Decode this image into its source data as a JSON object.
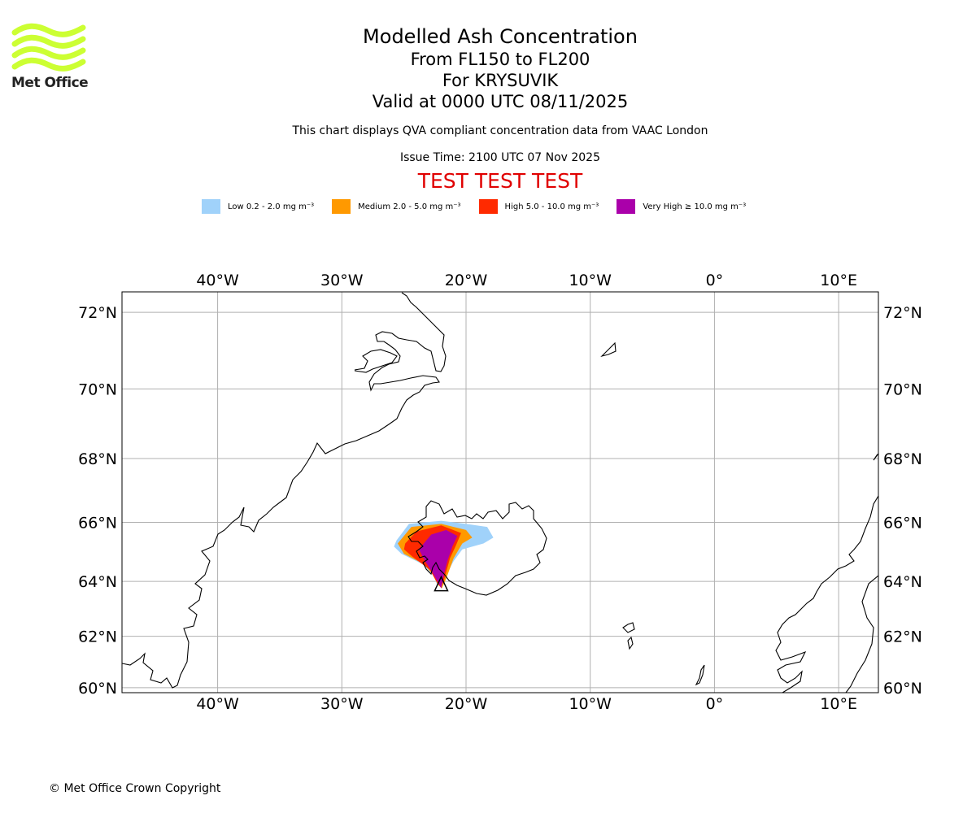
{
  "logo": {
    "text": "Met Office",
    "color": "#ccff33"
  },
  "title": {
    "main": "Modelled Ash Concentration",
    "level": "From FL150 to FL200",
    "location": "For KRYSUVIK",
    "valid": "Valid at 0000 UTC 08/11/2025"
  },
  "subtitle": "This chart displays QVA compliant concentration data from VAAC London",
  "issue_time": "Issue Time: 2100 UTC 07 Nov 2025",
  "test_banner": "TEST TEST TEST",
  "legend": [
    {
      "label": "Low 0.2 - 2.0 mg m⁻³",
      "color": "#a0d2fa"
    },
    {
      "label": "Medium 2.0 - 5.0 mg m⁻³",
      "color": "#ff9900"
    },
    {
      "label": "High 5.0 - 10.0 mg m⁻³",
      "color": "#ff2a00"
    },
    {
      "label": "Very High  ≥  10.0 mg m⁻³",
      "color": "#aa00aa"
    }
  ],
  "map": {
    "lon_range": [
      -47.7,
      13.2
    ],
    "lat_range": [
      59.8,
      72.5
    ],
    "lon_ticks": [
      {
        "value": -40,
        "label": "40°W"
      },
      {
        "value": -30,
        "label": "30°W"
      },
      {
        "value": -20,
        "label": "20°W"
      },
      {
        "value": -10,
        "label": "10°W"
      },
      {
        "value": 0,
        "label": "0°"
      },
      {
        "value": 10,
        "label": "10°E"
      }
    ],
    "lat_ticks": [
      {
        "value": 60,
        "label": "60°N"
      },
      {
        "value": 62,
        "label": "62°N"
      },
      {
        "value": 64,
        "label": "64°N"
      },
      {
        "value": 66,
        "label": "66°N"
      },
      {
        "value": 68,
        "label": "68°N"
      },
      {
        "value": 70,
        "label": "70°N"
      },
      {
        "value": 72,
        "label": "72°N"
      }
    ],
    "grid_color": "#b0b0b0",
    "volcano": {
      "name": "KRYSUVIK",
      "lon": -22.0,
      "lat": 63.9
    },
    "ash": {
      "low": [
        [
          -25.6,
          65.4
        ],
        [
          -24.6,
          65.95
        ],
        [
          -22.0,
          66.05
        ],
        [
          -20.0,
          65.95
        ],
        [
          -18.3,
          65.85
        ],
        [
          -17.8,
          65.5
        ],
        [
          -18.6,
          65.3
        ],
        [
          -20.3,
          65.1
        ],
        [
          -21.0,
          64.7
        ],
        [
          -21.5,
          64.3
        ],
        [
          -21.9,
          63.9
        ],
        [
          -22.3,
          63.85
        ],
        [
          -22.6,
          64.2
        ],
        [
          -23.5,
          64.6
        ],
        [
          -25.2,
          64.95
        ],
        [
          -25.8,
          65.2
        ]
      ],
      "medium": [
        [
          -25.5,
          65.3
        ],
        [
          -24.4,
          65.85
        ],
        [
          -22.0,
          65.95
        ],
        [
          -20.0,
          65.75
        ],
        [
          -19.5,
          65.5
        ],
        [
          -20.3,
          65.3
        ],
        [
          -21.0,
          64.8
        ],
        [
          -21.6,
          64.1
        ],
        [
          -21.95,
          63.75
        ],
        [
          -22.3,
          63.9
        ],
        [
          -22.6,
          64.2
        ],
        [
          -23.4,
          64.6
        ],
        [
          -25.0,
          64.95
        ]
      ],
      "high": [
        [
          -24.9,
          65.3
        ],
        [
          -24.0,
          65.7
        ],
        [
          -22.0,
          65.9
        ],
        [
          -20.4,
          65.65
        ],
        [
          -20.8,
          65.25
        ],
        [
          -21.3,
          64.8
        ],
        [
          -21.8,
          64.0
        ],
        [
          -22.05,
          63.8
        ],
        [
          -22.4,
          64.0
        ],
        [
          -22.9,
          64.4
        ],
        [
          -24.3,
          64.85
        ],
        [
          -25.0,
          65.1
        ]
      ],
      "very_high": [
        [
          -23.8,
          65.1
        ],
        [
          -22.8,
          65.6
        ],
        [
          -21.6,
          65.75
        ],
        [
          -20.7,
          65.55
        ],
        [
          -21.1,
          65.2
        ],
        [
          -21.5,
          64.7
        ],
        [
          -21.8,
          64.2
        ],
        [
          -22.0,
          63.75
        ],
        [
          -22.3,
          64.0
        ],
        [
          -22.7,
          64.3
        ],
        [
          -23.3,
          64.7
        ]
      ]
    }
  },
  "copyright": "© Met Office Crown Copyright"
}
